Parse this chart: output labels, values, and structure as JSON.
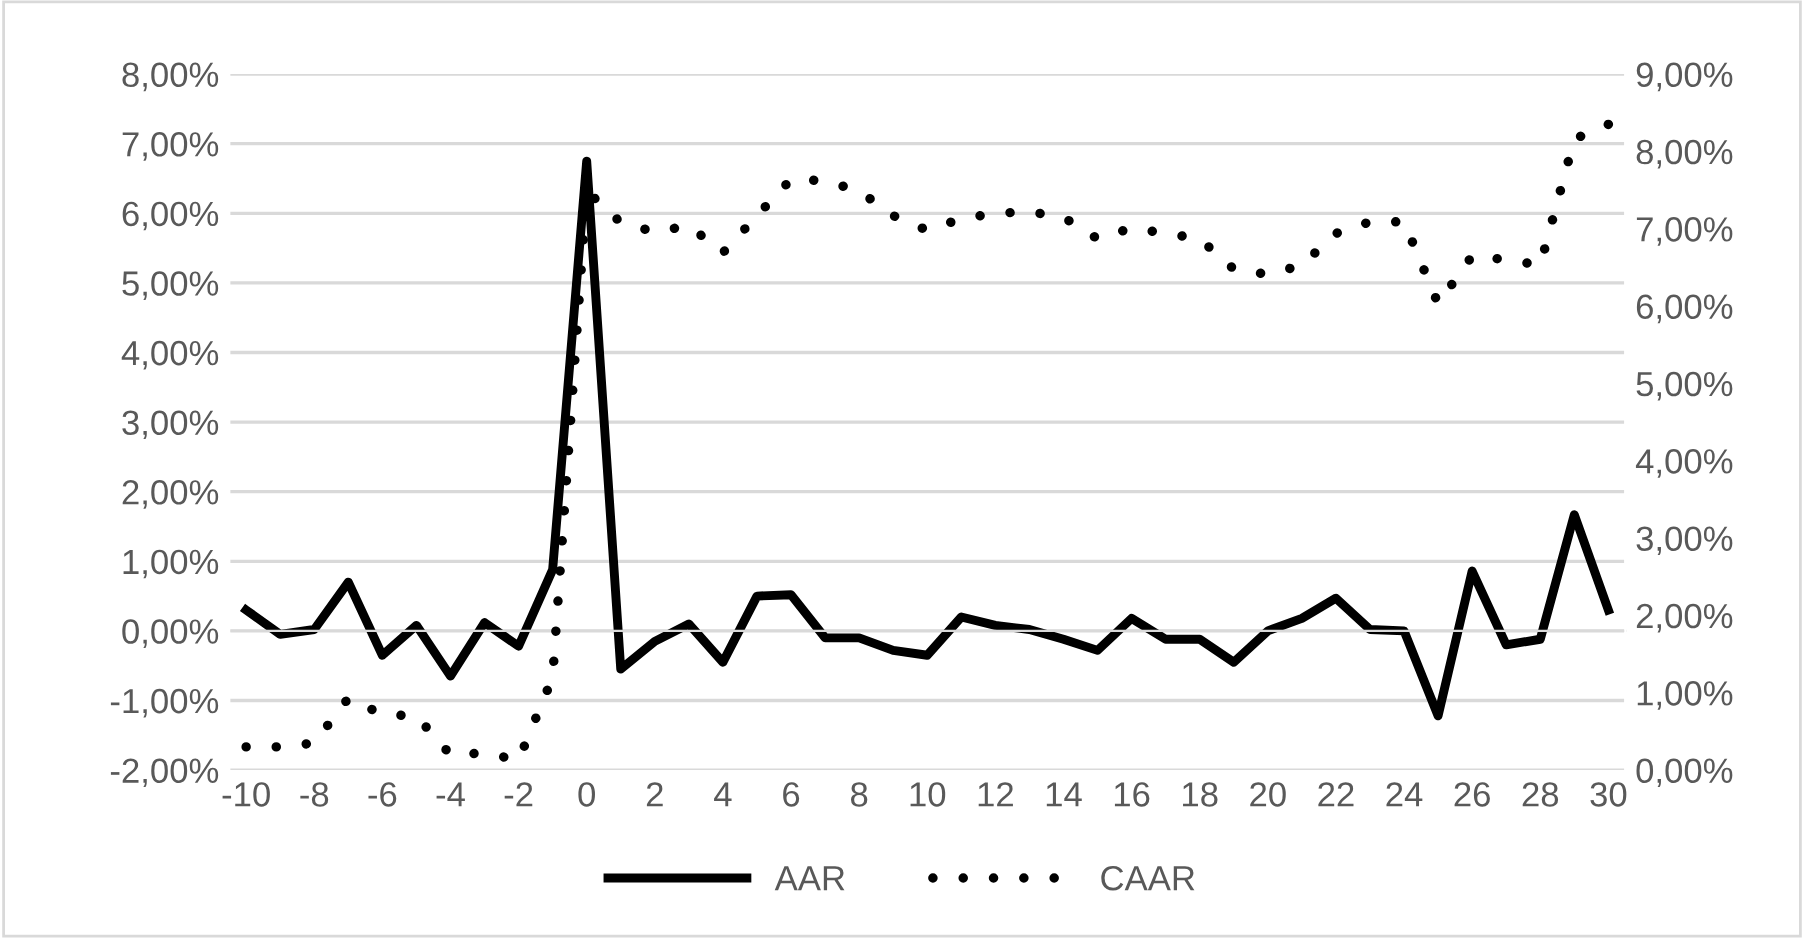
{
  "chart_data": {
    "type": "line",
    "x": [
      -10,
      -9,
      -8,
      -7,
      -6,
      -5,
      -4,
      -3,
      -2,
      -1,
      0,
      1,
      2,
      3,
      4,
      5,
      6,
      7,
      8,
      9,
      10,
      11,
      12,
      13,
      14,
      15,
      16,
      17,
      18,
      19,
      20,
      21,
      22,
      23,
      24,
      25,
      26,
      27,
      28,
      29,
      30
    ],
    "series": [
      {
        "name": "AAR",
        "color": "#000000",
        "line_style": "solid",
        "values": [
          0.3,
          -0.05,
          0.02,
          0.7,
          -0.35,
          0.08,
          -0.65,
          0.12,
          -0.22,
          0.88,
          6.75,
          -0.55,
          -0.15,
          0.1,
          -0.45,
          0.5,
          0.52,
          -0.1,
          -0.1,
          -0.28,
          -0.35,
          0.2,
          0.08,
          0.02,
          -0.12,
          -0.28,
          0.18,
          -0.12,
          -0.12,
          -0.45,
          0.0,
          0.18,
          0.47,
          0.02,
          0.0,
          -1.22,
          0.86,
          -0.2,
          -0.12,
          1.67,
          0.3
        ]
      },
      {
        "name": "CAAR",
        "color": "#000000",
        "line_style": "dotted",
        "axis": "y2",
        "values": [
          0.3,
          0.3,
          0.35,
          0.93,
          0.72,
          0.7,
          0.2,
          0.22,
          0.13,
          1.2,
          7.49,
          7.08,
          6.96,
          7.04,
          6.69,
          7.17,
          7.64,
          7.62,
          7.49,
          7.17,
          6.98,
          7.13,
          7.2,
          7.22,
          7.15,
          6.87,
          7.01,
          6.94,
          6.87,
          6.48,
          6.41,
          6.53,
          6.94,
          7.09,
          7.09,
          6.03,
          6.65,
          6.6,
          6.53,
          8.16,
          8.35
        ]
      }
    ],
    "xlim": [
      -10.5,
      30.5
    ],
    "xticks": [
      -10,
      -8,
      -6,
      -4,
      -2,
      0,
      2,
      4,
      6,
      8,
      10,
      12,
      14,
      16,
      18,
      20,
      22,
      24,
      26,
      28,
      30
    ],
    "ylim": [
      -2,
      8
    ],
    "yticks": [
      {
        "value": -2,
        "label": "-2,00%"
      },
      {
        "value": -1,
        "label": "-1,00%"
      },
      {
        "value": 0,
        "label": "0,00%"
      },
      {
        "value": 1,
        "label": "1,00%"
      },
      {
        "value": 2,
        "label": "2,00%"
      },
      {
        "value": 3,
        "label": "3,00%"
      },
      {
        "value": 4,
        "label": "4,00%"
      },
      {
        "value": 5,
        "label": "5,00%"
      },
      {
        "value": 6,
        "label": "6,00%"
      },
      {
        "value": 7,
        "label": "7,00%"
      },
      {
        "value": 8,
        "label": "8,00%"
      }
    ],
    "y2lim": [
      0,
      9
    ],
    "y2ticks": [
      {
        "value": 0,
        "label": "0,00%"
      },
      {
        "value": 1,
        "label": "1,00%"
      },
      {
        "value": 2,
        "label": "2,00%"
      },
      {
        "value": 3,
        "label": "3,00%"
      },
      {
        "value": 4,
        "label": "4,00%"
      },
      {
        "value": 5,
        "label": "5,00%"
      },
      {
        "value": 6,
        "label": "6,00%"
      },
      {
        "value": 7,
        "label": "7,00%"
      },
      {
        "value": 8,
        "label": "8,00%"
      },
      {
        "value": 9,
        "label": "9,00%"
      }
    ],
    "grid": "y",
    "legend": "bottom",
    "marker": "none"
  }
}
